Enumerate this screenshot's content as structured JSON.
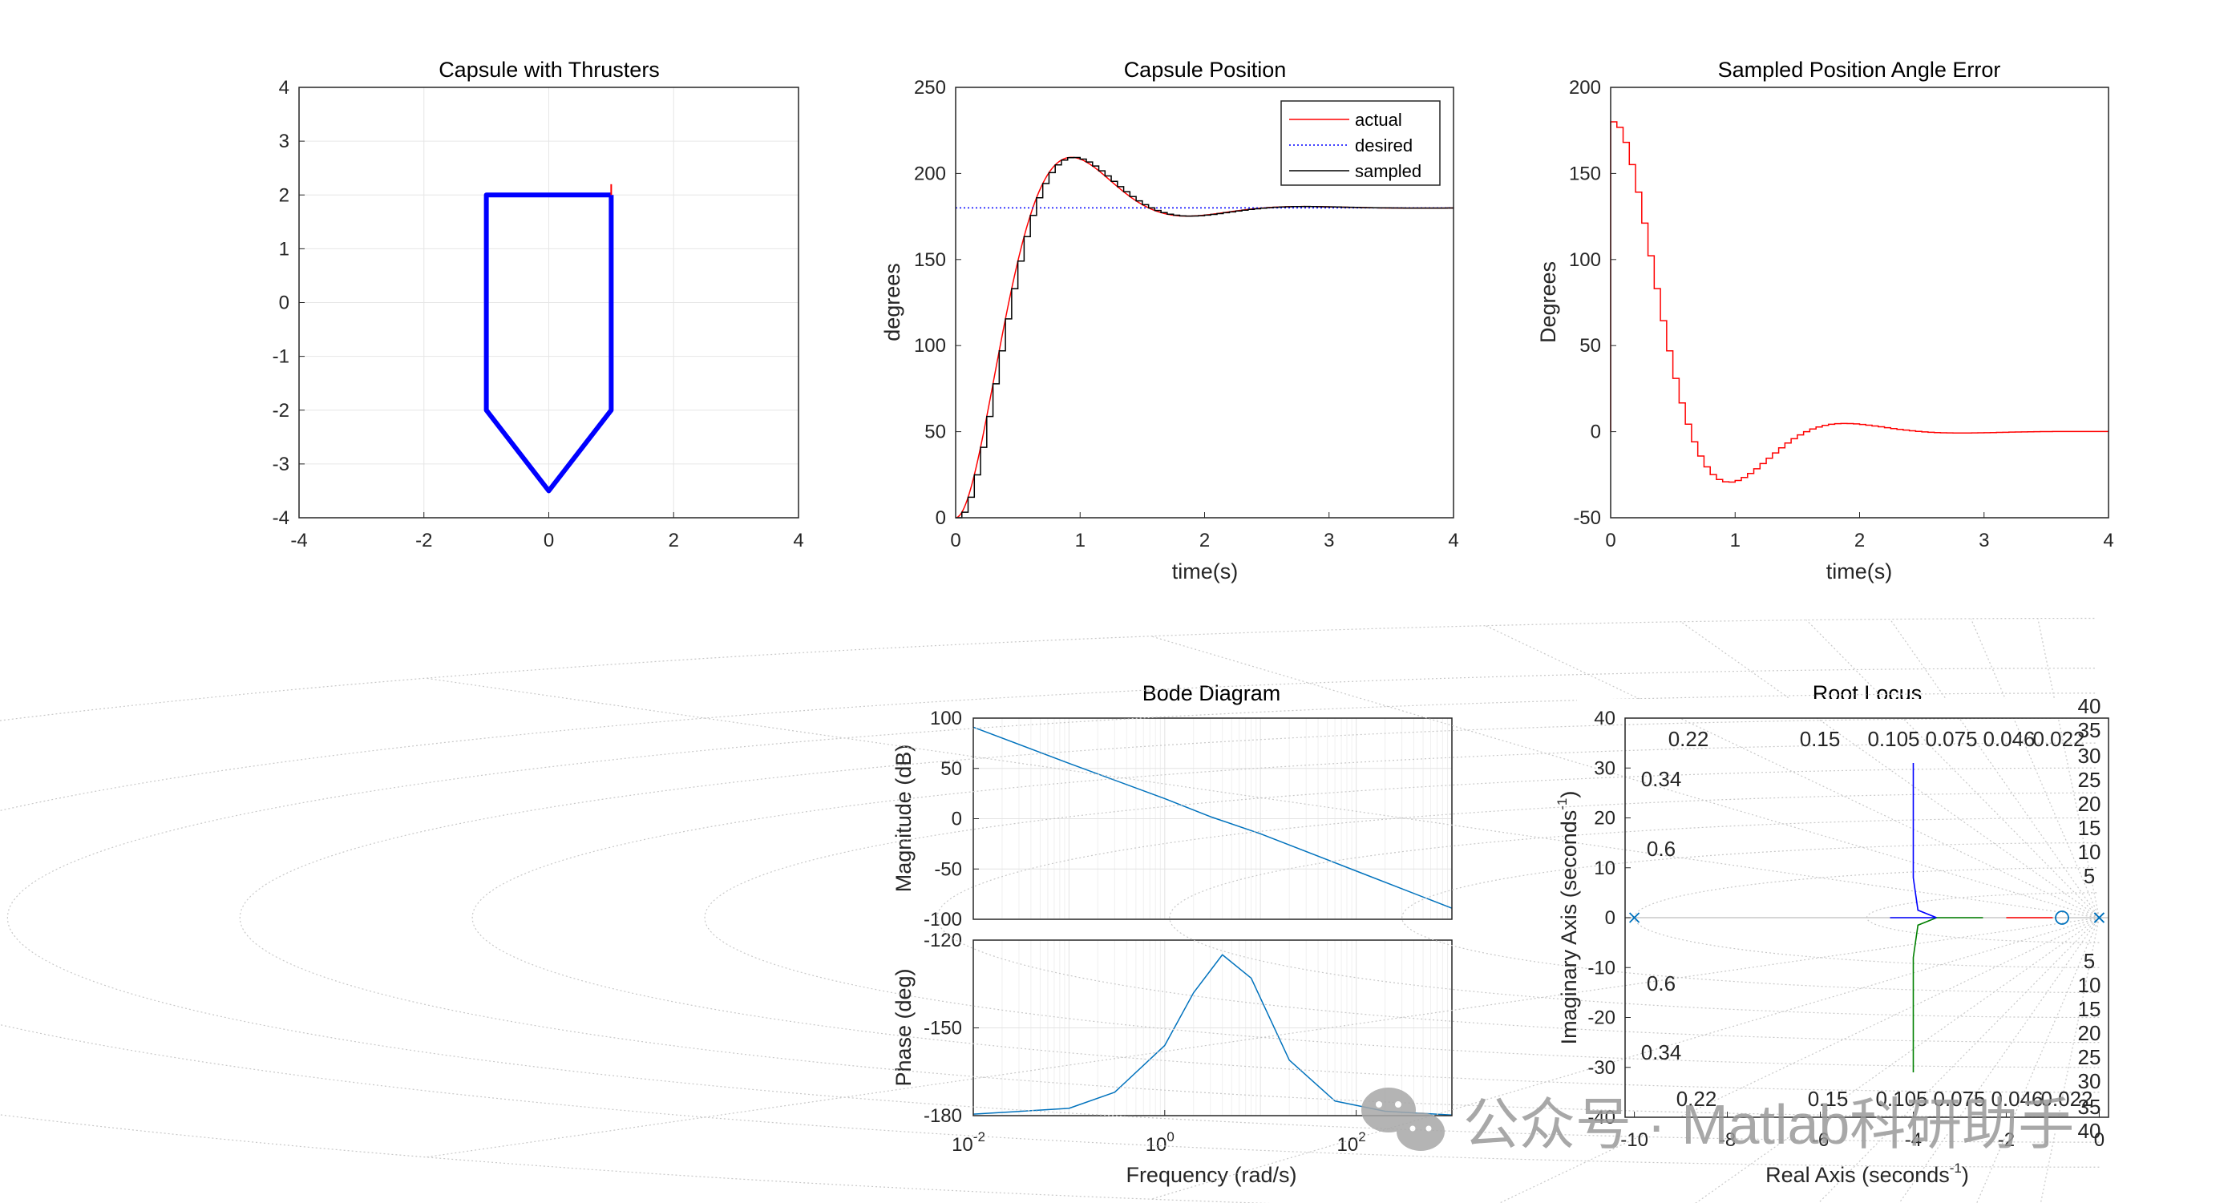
{
  "watermark": {
    "text": "公众号 · Matlab科研助手",
    "icon": "wechat-icon"
  },
  "chart_data": [
    {
      "id": "capsule",
      "type": "line",
      "title": "Capsule with Thrusters",
      "xlim": [
        -4,
        4
      ],
      "ylim": [
        -4,
        4
      ],
      "xticks": [
        -4,
        -2,
        0,
        2,
        4
      ],
      "yticks": [
        -4,
        -3,
        -2,
        -1,
        0,
        1,
        2,
        3,
        4
      ],
      "grid": true,
      "outline": {
        "x": [
          1,
          -1,
          -1,
          0,
          1,
          1
        ],
        "y": [
          2,
          2,
          -2,
          -3.5,
          -2,
          2
        ],
        "color": "#0000ff"
      },
      "thruster": {
        "x": [
          1,
          1
        ],
        "y": [
          2,
          2.2
        ],
        "color": "#ff0000"
      }
    },
    {
      "id": "position",
      "type": "line",
      "title": "Capsule Position",
      "xlabel": "time(s)",
      "ylabel": "degrees",
      "xlim": [
        0,
        4
      ],
      "ylim": [
        0,
        250
      ],
      "xticks": [
        0,
        1,
        2,
        3,
        4
      ],
      "yticks": [
        0,
        50,
        100,
        150,
        200,
        250
      ],
      "legend": [
        "actual",
        "desired",
        "sampled"
      ],
      "legend_position": "top-right",
      "series": [
        {
          "name": "actual",
          "color": "#ff0000",
          "style": "solid",
          "model": {
            "final": 180,
            "wn": 3.9,
            "zeta": 0.5,
            "step": 0
          }
        },
        {
          "name": "desired",
          "color": "#0000ff",
          "style": "dotted",
          "x": [
            0,
            4
          ],
          "y": [
            180,
            180
          ]
        },
        {
          "name": "sampled",
          "color": "#000000",
          "style": "stairs",
          "model": {
            "final": 180,
            "wn": 3.9,
            "zeta": 0.5,
            "step": 0.05
          }
        }
      ]
    },
    {
      "id": "error",
      "type": "line",
      "title": "Sampled Position Angle Error",
      "xlabel": "time(s)",
      "ylabel": "Degrees",
      "xlim": [
        0,
        4
      ],
      "ylim": [
        -50,
        200
      ],
      "xticks": [
        0,
        1,
        2,
        3,
        4
      ],
      "yticks": [
        -50,
        0,
        50,
        100,
        150,
        200
      ],
      "series": [
        {
          "name": "error",
          "color": "#ff0000",
          "style": "stairs",
          "model": {
            "peak": 180,
            "final": 0,
            "wn": 3.9,
            "zeta": 0.5,
            "step": 0.05
          }
        }
      ]
    },
    {
      "id": "bode",
      "type": "line",
      "title": "Bode Diagram",
      "xlabel": "Frequency  (rad/s)",
      "xscale": "log",
      "xlim": [
        0.01,
        1000
      ],
      "xticks": [
        {
          "base": "10",
          "exp": "-2",
          "value": 0.01
        },
        {
          "base": "10",
          "exp": "0",
          "value": 1
        },
        {
          "base": "10",
          "exp": "2",
          "value": 100
        }
      ],
      "magnitude": {
        "ylabel": "Magnitude (dB)",
        "ylim": [
          -100,
          100
        ],
        "yticks": [
          -100,
          -50,
          0,
          50,
          100
        ],
        "x": [
          0.01,
          0.1,
          1,
          3,
          10,
          100,
          1000
        ],
        "y": [
          91,
          55,
          20,
          2,
          -15,
          -52,
          -89
        ]
      },
      "phase": {
        "ylabel": "Phase (deg)",
        "ylim": [
          -180,
          -120
        ],
        "yticks": [
          -180,
          -150,
          -120
        ],
        "x": [
          0.01,
          0.1,
          0.3,
          1,
          2,
          4,
          8,
          20,
          60,
          200,
          1000
        ],
        "y": [
          -179.5,
          -177.5,
          -172,
          -156,
          -138,
          -125,
          -133,
          -161,
          -175,
          -178.5,
          -179.8
        ]
      },
      "color": "#0072bd"
    },
    {
      "id": "rlocus",
      "type": "line",
      "title": "Root Locus",
      "xlabel": "Real Axis (seconds",
      "xlabel_sup": "-1",
      "xlabel_close": ")",
      "ylabel": "Imaginary Axis (seconds",
      "ylabel_sup": "-1",
      "ylabel_close": ")",
      "xlim": [
        -10.2,
        0.2
      ],
      "ylim": [
        -40,
        40
      ],
      "xticks": [
        -10,
        -8,
        -6,
        -4,
        -2,
        0
      ],
      "yticks": [
        -40,
        -30,
        -20,
        -10,
        0,
        10,
        20,
        30,
        40
      ],
      "damping_labels": [
        "0.22",
        "0.15",
        "0.105",
        "0.075",
        "0.046",
        "0.022"
      ],
      "damping_labels_left": [
        "0.34",
        "0.6"
      ],
      "wn_labels": [
        "40",
        "35",
        "30",
        "25",
        "20",
        "15",
        "10",
        "5"
      ],
      "poles_x": [
        -10,
        0,
        0
      ],
      "zeros_x": [
        -0.8
      ],
      "branches": [
        {
          "color": "#0000ff",
          "x": [
            -3.5,
            -3.9,
            -4.0,
            -4.0
          ],
          "y": [
            0,
            1.5,
            8,
            31
          ]
        },
        {
          "color": "#008000",
          "x": [
            -3.5,
            -3.9,
            -4.0,
            -4.0
          ],
          "y": [
            0,
            -1.5,
            -8,
            -31
          ]
        },
        {
          "color": "#ff0000",
          "x": [
            -1.0,
            -2.0
          ],
          "y": [
            0,
            0
          ]
        },
        {
          "color": "#0000ff",
          "x": [
            -3.5,
            -4.5
          ],
          "y": [
            0,
            0
          ]
        },
        {
          "color": "#008000",
          "x": [
            -3.5,
            -2.5
          ],
          "y": [
            0,
            0
          ]
        }
      ]
    }
  ]
}
